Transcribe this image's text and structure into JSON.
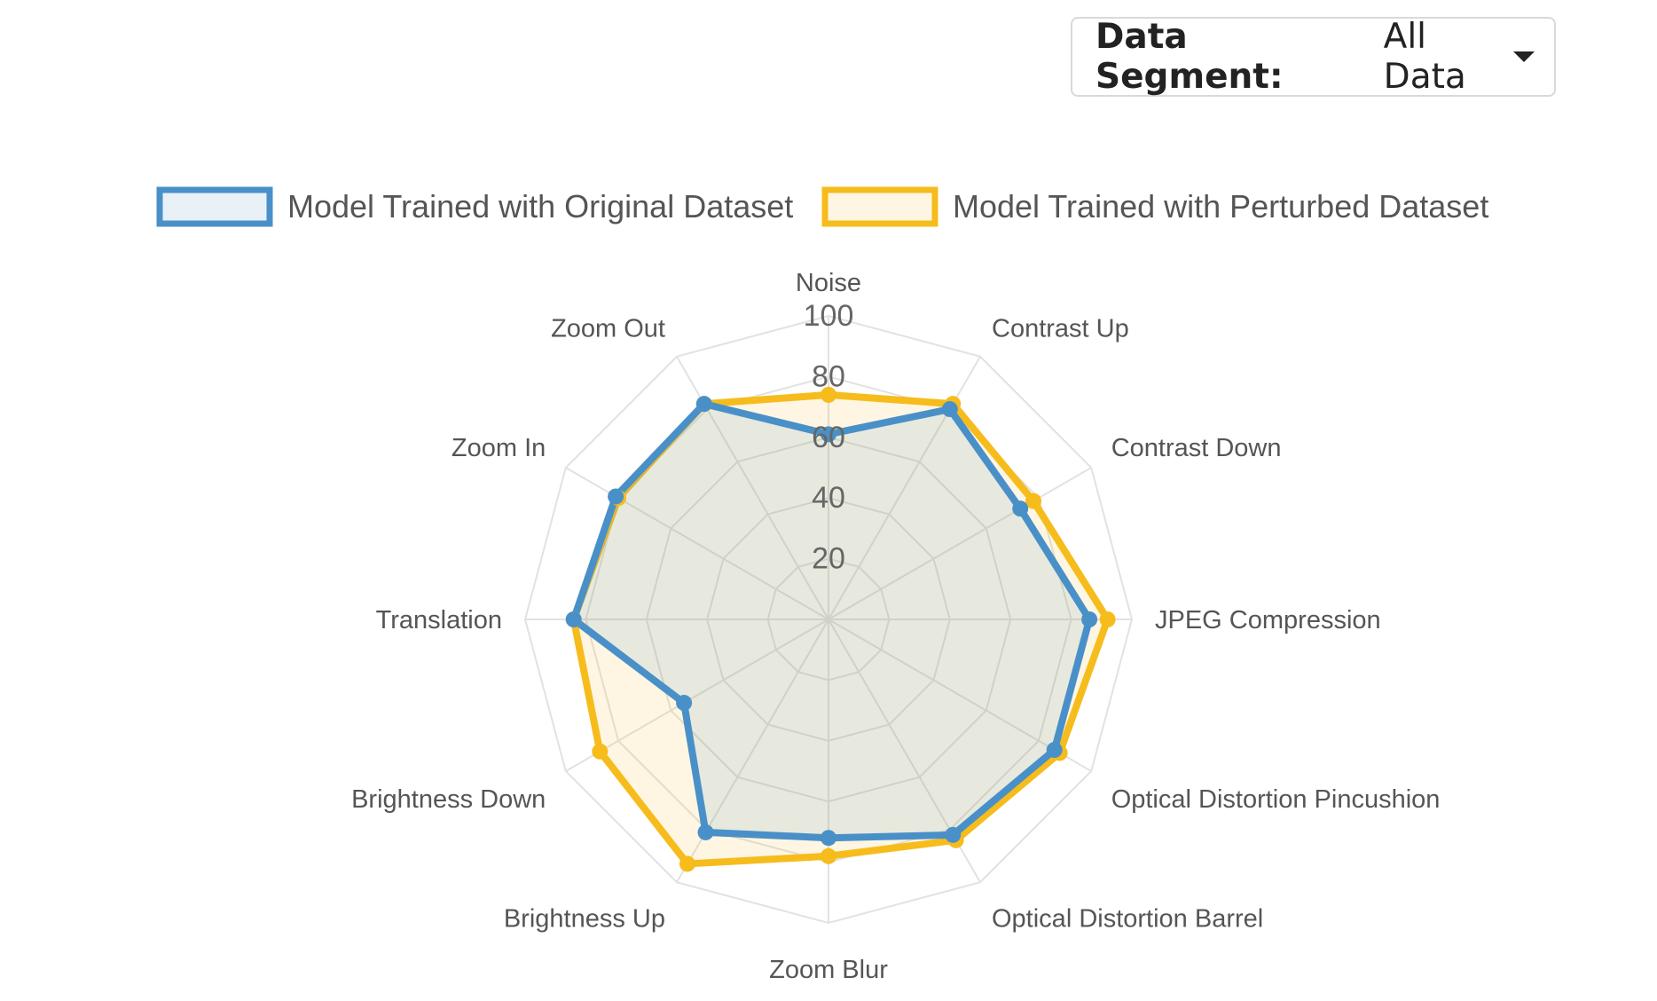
{
  "segment_selector": {
    "label": "Data Segment:",
    "value": "All Data"
  },
  "chart_data": {
    "type": "radar",
    "categories": [
      "Noise",
      "Contrast Up",
      "Contrast Down",
      "JPEG Compression",
      "Optical Distortion Pincushion",
      "Optical Distortion Barrel",
      "Zoom Blur",
      "Brightness Up",
      "Brightness Down",
      "Translation",
      "Zoom In",
      "Zoom Out"
    ],
    "series": [
      {
        "name": "Model Trained with Original Dataset",
        "values": [
          61,
          80,
          73,
          86,
          86,
          82,
          72,
          81,
          55,
          84,
          81,
          82
        ],
        "color": "#4a90c8",
        "fill": "rgba(74,144,200,0.13)"
      },
      {
        "name": "Model Trained with Perturbed Dataset",
        "values": [
          74,
          82,
          78,
          92,
          88,
          84,
          78,
          93,
          87,
          84,
          80,
          82
        ],
        "color": "#f6bc1c",
        "fill": "rgba(246,188,28,0.13)"
      }
    ],
    "r_ticks": [
      "20",
      "40",
      "60",
      "80",
      "100"
    ],
    "r_range": [
      0,
      100
    ],
    "legend_position": "top",
    "grid": true
  }
}
